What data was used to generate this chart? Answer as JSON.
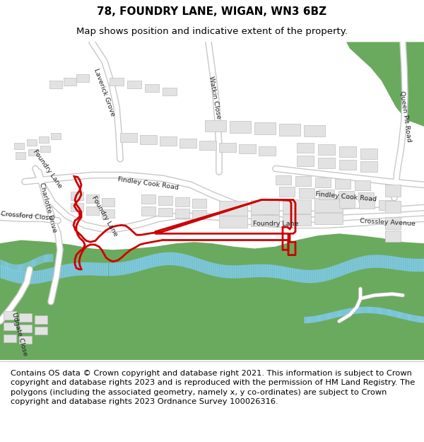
{
  "title": "78, FOUNDRY LANE, WIGAN, WN3 6BZ",
  "subtitle": "Map shows position and indicative extent of the property.",
  "footer": "Contains OS data © Crown copyright and database right 2021. This information is subject to Crown copyright and database rights 2023 and is reproduced with the permission of HM Land Registry. The polygons (including the associated geometry, namely x, y co-ordinates) are subject to Crown copyright and database rights 2023 Ordnance Survey 100026316.",
  "map_bg": "#f2f2f2",
  "green_color": "#6aaa5e",
  "river_color": "#7ec8e3",
  "road_color": "#ffffff",
  "road_edge_color": "#c8c8c8",
  "building_color": "#e2e2e2",
  "building_edge_color": "#c0c0c0",
  "red_color": "#cc0000",
  "title_fontsize": 11,
  "subtitle_fontsize": 9.5,
  "footer_fontsize": 8.2,
  "label_fontsize": 6.8
}
